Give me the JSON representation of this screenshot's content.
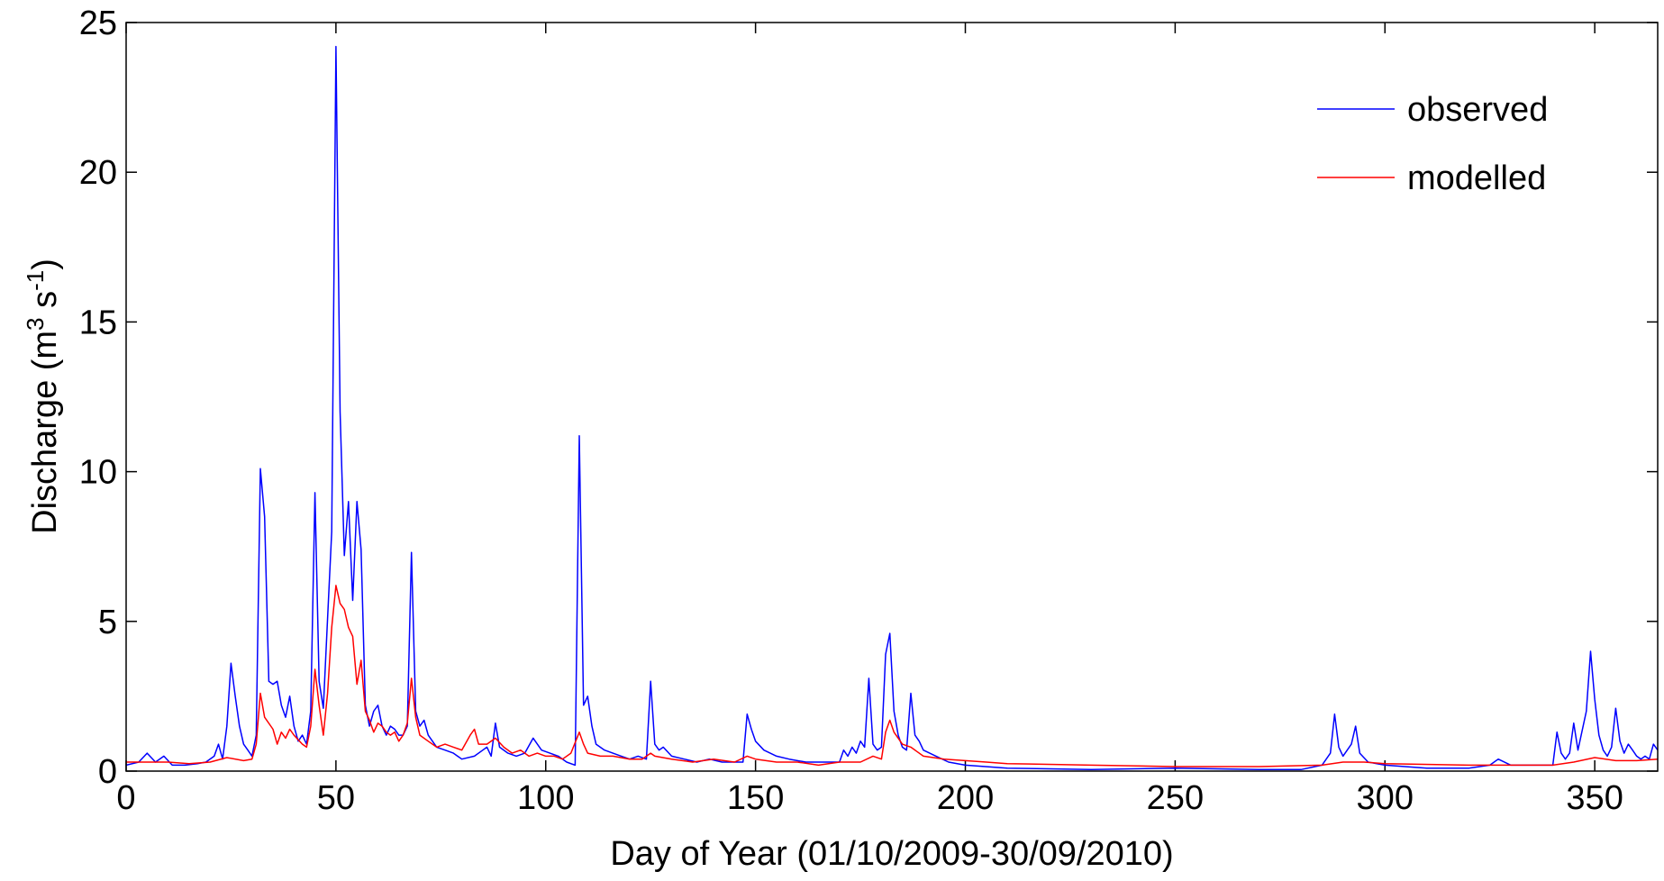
{
  "chart_data": {
    "type": "line",
    "xlabel": "Day of Year (01/10/2009-30/09/2010)",
    "ylabel_main": "Discharge (m",
    "ylabel_sup1": "3",
    "ylabel_mid": " s",
    "ylabel_sup2": "-1",
    "ylabel_end": ")",
    "xlim": [
      0,
      365
    ],
    "ylim": [
      0,
      25
    ],
    "xticks": [
      0,
      50,
      100,
      150,
      200,
      250,
      300,
      350
    ],
    "yticks": [
      0,
      5,
      10,
      15,
      20,
      25
    ],
    "legend_position": "top-right",
    "series": [
      {
        "name": "observed",
        "color": "#0000ff",
        "points": [
          [
            0,
            0.2
          ],
          [
            3,
            0.3
          ],
          [
            5,
            0.6
          ],
          [
            7,
            0.3
          ],
          [
            9,
            0.5
          ],
          [
            11,
            0.2
          ],
          [
            14,
            0.2
          ],
          [
            17,
            0.25
          ],
          [
            19,
            0.3
          ],
          [
            21,
            0.5
          ],
          [
            22,
            0.9
          ],
          [
            23,
            0.4
          ],
          [
            24,
            1.5
          ],
          [
            25,
            3.6
          ],
          [
            26,
            2.5
          ],
          [
            27,
            1.5
          ],
          [
            28,
            0.9
          ],
          [
            29,
            0.7
          ],
          [
            30,
            0.5
          ],
          [
            31,
            1.2
          ],
          [
            32,
            10.1
          ],
          [
            33,
            8.5
          ],
          [
            34,
            3.0
          ],
          [
            35,
            2.9
          ],
          [
            36,
            3.0
          ],
          [
            37,
            2.2
          ],
          [
            38,
            1.8
          ],
          [
            39,
            2.5
          ],
          [
            40,
            1.5
          ],
          [
            41,
            1.0
          ],
          [
            42,
            1.2
          ],
          [
            43,
            0.9
          ],
          [
            44,
            2.0
          ],
          [
            45,
            9.3
          ],
          [
            46,
            3.0
          ],
          [
            47,
            2.1
          ],
          [
            48,
            5.1
          ],
          [
            49,
            8.0
          ],
          [
            50,
            24.2
          ],
          [
            51,
            12.0
          ],
          [
            52,
            7.2
          ],
          [
            53,
            9.0
          ],
          [
            54,
            5.7
          ],
          [
            55,
            9.0
          ],
          [
            56,
            7.4
          ],
          [
            57,
            2.2
          ],
          [
            58,
            1.5
          ],
          [
            59,
            2.0
          ],
          [
            60,
            2.2
          ],
          [
            61,
            1.5
          ],
          [
            62,
            1.2
          ],
          [
            63,
            1.5
          ],
          [
            64,
            1.4
          ],
          [
            65,
            1.2
          ],
          [
            66,
            1.2
          ],
          [
            67,
            1.5
          ],
          [
            68,
            7.3
          ],
          [
            69,
            2.0
          ],
          [
            70,
            1.5
          ],
          [
            71,
            1.7
          ],
          [
            72,
            1.2
          ],
          [
            74,
            0.8
          ],
          [
            76,
            0.7
          ],
          [
            78,
            0.6
          ],
          [
            80,
            0.4
          ],
          [
            83,
            0.5
          ],
          [
            85,
            0.7
          ],
          [
            86,
            0.8
          ],
          [
            87,
            0.5
          ],
          [
            88,
            1.6
          ],
          [
            89,
            0.8
          ],
          [
            91,
            0.6
          ],
          [
            93,
            0.5
          ],
          [
            95,
            0.6
          ],
          [
            97,
            1.1
          ],
          [
            99,
            0.7
          ],
          [
            101,
            0.6
          ],
          [
            103,
            0.5
          ],
          [
            105,
            0.3
          ],
          [
            107,
            0.2
          ],
          [
            108,
            11.2
          ],
          [
            109,
            2.2
          ],
          [
            110,
            2.5
          ],
          [
            111,
            1.5
          ],
          [
            112,
            0.9
          ],
          [
            114,
            0.7
          ],
          [
            116,
            0.6
          ],
          [
            118,
            0.5
          ],
          [
            120,
            0.4
          ],
          [
            122,
            0.5
          ],
          [
            124,
            0.4
          ],
          [
            125,
            3.0
          ],
          [
            126,
            0.9
          ],
          [
            127,
            0.7
          ],
          [
            128,
            0.8
          ],
          [
            130,
            0.5
          ],
          [
            133,
            0.4
          ],
          [
            136,
            0.3
          ],
          [
            139,
            0.4
          ],
          [
            142,
            0.3
          ],
          [
            145,
            0.3
          ],
          [
            147,
            0.3
          ],
          [
            148,
            1.9
          ],
          [
            149,
            1.4
          ],
          [
            150,
            1.0
          ],
          [
            152,
            0.7
          ],
          [
            155,
            0.5
          ],
          [
            158,
            0.4
          ],
          [
            162,
            0.3
          ],
          [
            166,
            0.3
          ],
          [
            170,
            0.3
          ],
          [
            171,
            0.7
          ],
          [
            172,
            0.5
          ],
          [
            173,
            0.8
          ],
          [
            174,
            0.6
          ],
          [
            175,
            1.0
          ],
          [
            176,
            0.8
          ],
          [
            177,
            3.1
          ],
          [
            178,
            0.9
          ],
          [
            179,
            0.7
          ],
          [
            180,
            0.8
          ],
          [
            181,
            3.9
          ],
          [
            182,
            4.6
          ],
          [
            183,
            2.0
          ],
          [
            184,
            1.2
          ],
          [
            185,
            0.8
          ],
          [
            186,
            0.7
          ],
          [
            187,
            2.6
          ],
          [
            188,
            1.2
          ],
          [
            189,
            1.0
          ],
          [
            190,
            0.7
          ],
          [
            193,
            0.5
          ],
          [
            196,
            0.3
          ],
          [
            200,
            0.2
          ],
          [
            210,
            0.1
          ],
          [
            230,
            0.05
          ],
          [
            250,
            0.1
          ],
          [
            270,
            0.05
          ],
          [
            280,
            0.05
          ],
          [
            285,
            0.2
          ],
          [
            287,
            0.6
          ],
          [
            288,
            1.9
          ],
          [
            289,
            0.8
          ],
          [
            290,
            0.5
          ],
          [
            292,
            0.9
          ],
          [
            293,
            1.5
          ],
          [
            294,
            0.6
          ],
          [
            296,
            0.3
          ],
          [
            300,
            0.2
          ],
          [
            310,
            0.1
          ],
          [
            320,
            0.1
          ],
          [
            325,
            0.2
          ],
          [
            327,
            0.4
          ],
          [
            330,
            0.2
          ],
          [
            335,
            0.2
          ],
          [
            340,
            0.2
          ],
          [
            341,
            1.3
          ],
          [
            342,
            0.6
          ],
          [
            343,
            0.4
          ],
          [
            344,
            0.6
          ],
          [
            345,
            1.6
          ],
          [
            346,
            0.7
          ],
          [
            348,
            2.0
          ],
          [
            349,
            4.0
          ],
          [
            350,
            2.4
          ],
          [
            351,
            1.2
          ],
          [
            352,
            0.7
          ],
          [
            353,
            0.5
          ],
          [
            354,
            0.8
          ],
          [
            355,
            2.1
          ],
          [
            356,
            1.0
          ],
          [
            357,
            0.6
          ],
          [
            358,
            0.9
          ],
          [
            359,
            0.7
          ],
          [
            360,
            0.5
          ],
          [
            361,
            0.4
          ],
          [
            362,
            0.5
          ],
          [
            363,
            0.4
          ],
          [
            364,
            0.9
          ],
          [
            365,
            0.7
          ]
        ]
      },
      {
        "name": "modelled",
        "color": "#ff0000",
        "points": [
          [
            0,
            0.3
          ],
          [
            5,
            0.3
          ],
          [
            10,
            0.3
          ],
          [
            15,
            0.25
          ],
          [
            20,
            0.3
          ],
          [
            24,
            0.45
          ],
          [
            28,
            0.35
          ],
          [
            30,
            0.4
          ],
          [
            31,
            0.9
          ],
          [
            32,
            2.6
          ],
          [
            33,
            1.8
          ],
          [
            35,
            1.4
          ],
          [
            36,
            0.9
          ],
          [
            37,
            1.3
          ],
          [
            38,
            1.1
          ],
          [
            39,
            1.4
          ],
          [
            40,
            1.2
          ],
          [
            42,
            0.9
          ],
          [
            43,
            0.8
          ],
          [
            44,
            1.5
          ],
          [
            45,
            3.4
          ],
          [
            46,
            2.2
          ],
          [
            47,
            1.2
          ],
          [
            48,
            2.6
          ],
          [
            49,
            4.8
          ],
          [
            50,
            6.2
          ],
          [
            51,
            5.6
          ],
          [
            52,
            5.4
          ],
          [
            53,
            4.8
          ],
          [
            54,
            4.5
          ],
          [
            55,
            2.9
          ],
          [
            56,
            3.7
          ],
          [
            57,
            2.0
          ],
          [
            58,
            1.7
          ],
          [
            59,
            1.3
          ],
          [
            60,
            1.6
          ],
          [
            61,
            1.5
          ],
          [
            62,
            1.3
          ],
          [
            63,
            1.2
          ],
          [
            64,
            1.3
          ],
          [
            65,
            1.0
          ],
          [
            66,
            1.2
          ],
          [
            67,
            1.6
          ],
          [
            68,
            3.1
          ],
          [
            69,
            1.8
          ],
          [
            70,
            1.2
          ],
          [
            72,
            1.0
          ],
          [
            74,
            0.8
          ],
          [
            76,
            0.9
          ],
          [
            78,
            0.8
          ],
          [
            80,
            0.7
          ],
          [
            82,
            1.2
          ],
          [
            83,
            1.4
          ],
          [
            84,
            0.9
          ],
          [
            86,
            0.9
          ],
          [
            88,
            1.1
          ],
          [
            90,
            0.8
          ],
          [
            92,
            0.6
          ],
          [
            94,
            0.7
          ],
          [
            96,
            0.5
          ],
          [
            98,
            0.6
          ],
          [
            100,
            0.5
          ],
          [
            102,
            0.5
          ],
          [
            104,
            0.4
          ],
          [
            106,
            0.6
          ],
          [
            108,
            1.3
          ],
          [
            109,
            0.9
          ],
          [
            110,
            0.6
          ],
          [
            113,
            0.5
          ],
          [
            116,
            0.5
          ],
          [
            120,
            0.4
          ],
          [
            123,
            0.4
          ],
          [
            125,
            0.6
          ],
          [
            126,
            0.5
          ],
          [
            130,
            0.4
          ],
          [
            135,
            0.3
          ],
          [
            140,
            0.4
          ],
          [
            145,
            0.3
          ],
          [
            148,
            0.5
          ],
          [
            150,
            0.4
          ],
          [
            155,
            0.3
          ],
          [
            160,
            0.3
          ],
          [
            165,
            0.2
          ],
          [
            170,
            0.3
          ],
          [
            175,
            0.3
          ],
          [
            178,
            0.5
          ],
          [
            180,
            0.4
          ],
          [
            181,
            1.3
          ],
          [
            182,
            1.7
          ],
          [
            183,
            1.3
          ],
          [
            185,
            0.9
          ],
          [
            187,
            0.8
          ],
          [
            190,
            0.5
          ],
          [
            195,
            0.4
          ],
          [
            200,
            0.35
          ],
          [
            205,
            0.3
          ],
          [
            210,
            0.25
          ],
          [
            230,
            0.2
          ],
          [
            250,
            0.15
          ],
          [
            270,
            0.15
          ],
          [
            285,
            0.2
          ],
          [
            290,
            0.3
          ],
          [
            295,
            0.3
          ],
          [
            300,
            0.25
          ],
          [
            320,
            0.2
          ],
          [
            340,
            0.2
          ],
          [
            345,
            0.3
          ],
          [
            350,
            0.45
          ],
          [
            355,
            0.35
          ],
          [
            360,
            0.35
          ],
          [
            365,
            0.4
          ]
        ]
      }
    ]
  }
}
